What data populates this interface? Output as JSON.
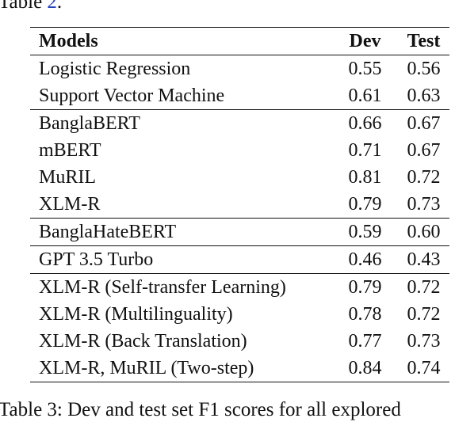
{
  "preceding_text": {
    "prefix": "Table ",
    "ref_number": "2",
    "suffix": "."
  },
  "table": {
    "headers": {
      "model": "Models",
      "dev": "Dev",
      "test": "Test"
    },
    "groups": [
      {
        "rows": [
          {
            "model": "Logistic Regression",
            "dev": "0.55",
            "test": "0.56"
          },
          {
            "model": "Support Vector Machine",
            "dev": "0.61",
            "test": "0.63"
          }
        ]
      },
      {
        "rows": [
          {
            "model": "BanglaBERT",
            "dev": "0.66",
            "test": "0.67"
          },
          {
            "model": "mBERT",
            "dev": "0.71",
            "test": "0.67"
          },
          {
            "model": "MuRIL",
            "dev": "0.81",
            "test": "0.72"
          },
          {
            "model": "XLM-R",
            "dev": "0.79",
            "test": "0.73"
          }
        ]
      },
      {
        "rows": [
          {
            "model": "BanglaHateBERT",
            "dev": "0.59",
            "test": "0.60"
          }
        ]
      },
      {
        "rows": [
          {
            "model": "GPT 3.5 Turbo",
            "dev": "0.46",
            "test": "0.43"
          }
        ]
      },
      {
        "rows": [
          {
            "model": "XLM-R (Self-transfer Learning)",
            "dev": "0.79",
            "test": "0.72"
          },
          {
            "model": "XLM-R (Multilinguality)",
            "dev": "0.78",
            "test": "0.72"
          },
          {
            "model": "XLM-R (Back Translation)",
            "dev": "0.77",
            "test": "0.73"
          },
          {
            "model": "XLM-R, MuRIL (Two-step)",
            "dev": "0.84",
            "test": "0.74",
            "bold": true
          }
        ]
      }
    ]
  },
  "caption": "Table 3: Dev and test set F1 scores for all explored"
}
